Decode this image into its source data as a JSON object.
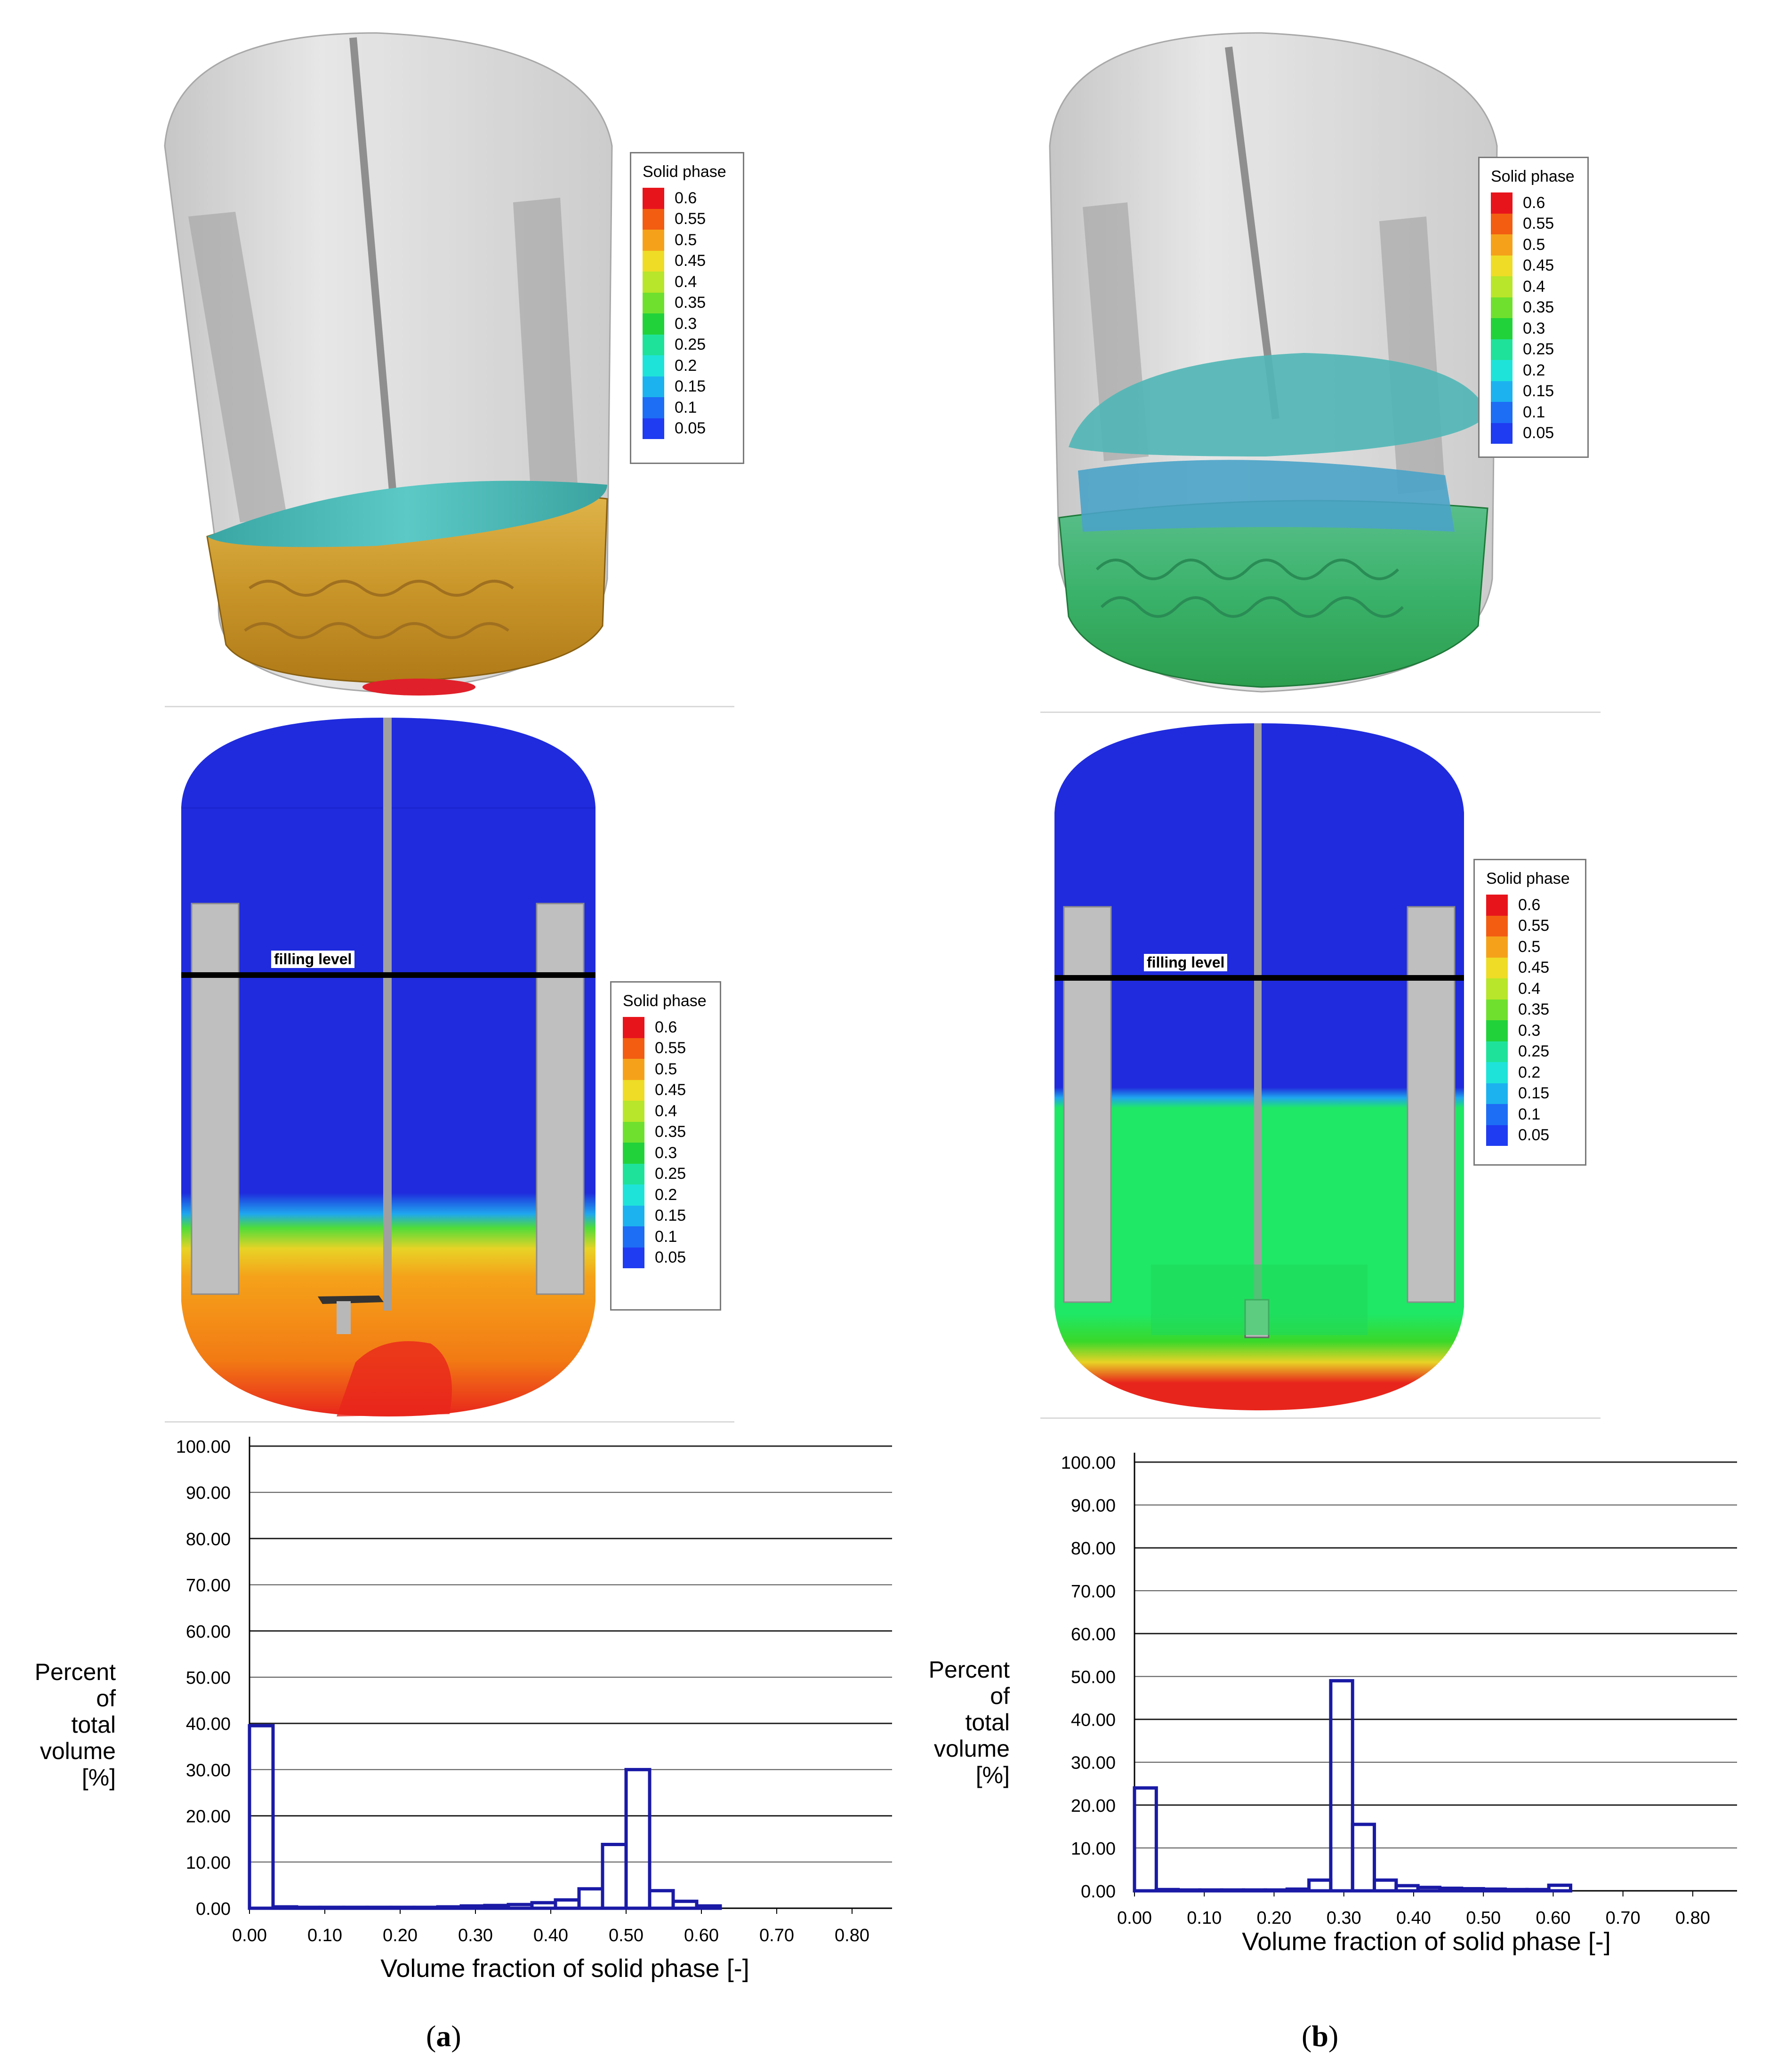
{
  "legend_title": "Solid phase",
  "legend_levels": [
    "0.6",
    "0.55",
    "0.5",
    "0.45",
    "0.4",
    "0.35",
    "0.3",
    "0.25",
    "0.2",
    "0.15",
    "0.1",
    "0.05"
  ],
  "legend_colors": [
    "#e8141c",
    "#f25d12",
    "#f5a21a",
    "#eedc26",
    "#b8e62a",
    "#6fe02e",
    "#22d23a",
    "#1fe29a",
    "#1ee3d9",
    "#1cb2ef",
    "#1e6df5",
    "#1f3cf2"
  ],
  "filling_level_label": "filling level",
  "panels": [
    {
      "caption_open": "(",
      "caption_letter": "a",
      "caption_close": ")"
    },
    {
      "caption_open": "(",
      "caption_letter": "b",
      "caption_close": ")"
    }
  ],
  "chart_data": [
    {
      "type": "bar",
      "panel": "a",
      "xlabel": "Volume fraction of solid phase [-]",
      "ylabel_lines": [
        "Percent",
        "of",
        "total",
        "volume",
        "[%]"
      ],
      "xlim": [
        0,
        0.85
      ],
      "ylim": [
        0,
        100
      ],
      "xticks": [
        "0.00",
        "0.10",
        "0.20",
        "0.30",
        "0.40",
        "0.50",
        "0.60",
        "0.70",
        "0.80"
      ],
      "yticks": [
        "0.00",
        "10.00",
        "20.00",
        "30.00",
        "40.00",
        "50.00",
        "60.00",
        "70.00",
        "80.00",
        "90.00",
        "100.00"
      ],
      "grid": true,
      "bin_width": 0.03125,
      "bin_starts": [
        0.0,
        0.03125,
        0.0625,
        0.09375,
        0.125,
        0.15625,
        0.1875,
        0.21875,
        0.25,
        0.28125,
        0.3125,
        0.34375,
        0.375,
        0.40625,
        0.4375,
        0.46875,
        0.5,
        0.53125,
        0.5625,
        0.59375
      ],
      "values": [
        39.5,
        0.3,
        0.2,
        0.2,
        0.2,
        0.2,
        0.2,
        0.2,
        0.3,
        0.5,
        0.6,
        0.8,
        1.2,
        1.8,
        4.2,
        13.8,
        30.0,
        3.8,
        1.5,
        0.5
      ]
    },
    {
      "type": "bar",
      "panel": "b",
      "xlabel": "Volume fraction of solid phase [-]",
      "ylabel_lines": [
        "Percent",
        "of",
        "total",
        "volume",
        "[%]"
      ],
      "xlim": [
        0,
        0.85
      ],
      "ylim": [
        0,
        100
      ],
      "xticks": [
        "0.00",
        "0.10",
        "0.20",
        "0.30",
        "0.40",
        "0.50",
        "0.60",
        "0.70",
        "0.80"
      ],
      "yticks": [
        "0.00",
        "10.00",
        "20.00",
        "30.00",
        "40.00",
        "50.00",
        "60.00",
        "70.00",
        "80.00",
        "90.00",
        "100.00"
      ],
      "grid": true,
      "bin_width": 0.03125,
      "bin_starts": [
        0.0,
        0.03125,
        0.0625,
        0.09375,
        0.125,
        0.15625,
        0.1875,
        0.21875,
        0.25,
        0.28125,
        0.3125,
        0.34375,
        0.375,
        0.40625,
        0.4375,
        0.46875,
        0.5,
        0.53125,
        0.5625,
        0.59375
      ],
      "values": [
        24.0,
        0.3,
        0.2,
        0.2,
        0.2,
        0.2,
        0.2,
        0.4,
        2.5,
        49.0,
        15.5,
        2.5,
        1.2,
        0.8,
        0.6,
        0.5,
        0.4,
        0.3,
        0.3,
        1.3
      ]
    }
  ]
}
